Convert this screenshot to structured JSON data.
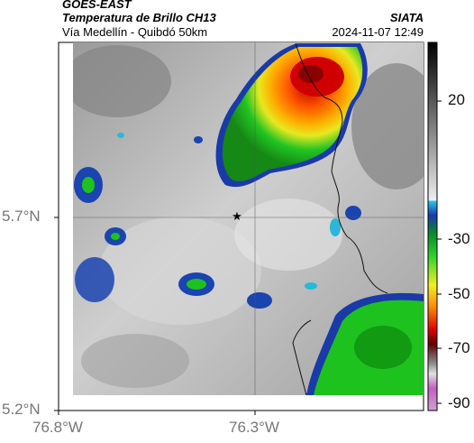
{
  "header": {
    "satellite": "GOES-EAST",
    "title": "Temperatura de Brillo CH13",
    "organization": "SIATA",
    "subtitle": "Vía Medellín - Quibdó 50km",
    "datetime": "2024-11-07 12:49"
  },
  "axes": {
    "lat_ticks": [
      "5.7°N",
      "5.2°N"
    ],
    "lon_ticks": [
      "76.8°W",
      "76.3°W"
    ]
  },
  "colorbar": {
    "ticks": [
      "20",
      "-30",
      "-50",
      "-70",
      "-90"
    ],
    "unit": ""
  },
  "map": {
    "marker_icon": "star-icon",
    "colors": {
      "warm": "#8a8a8a",
      "cyan": "#29b8d8",
      "blue": "#1a44b0",
      "green": "#1ec21e",
      "yellow": "#eeee22",
      "orange": "#ff8a00",
      "red": "#e00000",
      "darkred": "#7a0000",
      "magenta": "#c060c0"
    }
  }
}
